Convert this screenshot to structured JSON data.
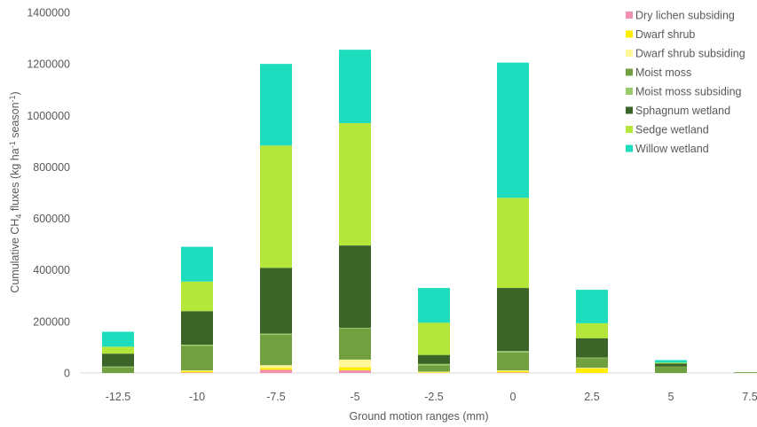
{
  "chart_data": {
    "type": "bar",
    "stacked": true,
    "categories": [
      "-12.5",
      "-10",
      "-7.5",
      "-5",
      "-2.5",
      "0",
      "2.5",
      "5",
      "7.5"
    ],
    "xlabel": "Ground motion ranges (mm)",
    "ylabel": {
      "prefix": "Cumulative CH",
      "sub": "4",
      "middle": " fluxes  (kg ha",
      "sup1": "-1",
      "middle2": " season",
      "sup2": "-1",
      "suffix": ")"
    },
    "ylim": [
      0,
      1400000
    ],
    "yticks": [
      0,
      200000,
      400000,
      600000,
      800000,
      1000000,
      1200000,
      1400000
    ],
    "ytick_labels": [
      "0",
      "200000",
      "400000",
      "600000",
      "800000",
      "1000000",
      "1200000",
      "1400000"
    ],
    "grid": false,
    "legend_position": "top-right",
    "series": [
      {
        "name": "Dry lichen subsiding",
        "color": "#f48fb1",
        "values": [
          0,
          2000,
          12000,
          10000,
          0,
          2000,
          0,
          0,
          0
        ]
      },
      {
        "name": "Dwarf shrub",
        "color": "#ffee00",
        "values": [
          0,
          5000,
          8000,
          12000,
          2000,
          5000,
          18000,
          0,
          0
        ]
      },
      {
        "name": "Dwarf shrub subsiding",
        "color": "#fff79a",
        "values": [
          0,
          3000,
          10000,
          30000,
          3000,
          3000,
          2000,
          0,
          0
        ]
      },
      {
        "name": "Moist moss",
        "color": "#70a040",
        "values": [
          22000,
          95000,
          118000,
          120000,
          25000,
          70000,
          38000,
          25000,
          3000
        ]
      },
      {
        "name": "Moist moss subsiding",
        "color": "#9bcc6a",
        "values": [
          3000,
          5000,
          5000,
          3000,
          5000,
          5000,
          2000,
          0,
          0
        ]
      },
      {
        "name": "Sphagnum wetland",
        "color": "#3a6428",
        "values": [
          50000,
          130000,
          255000,
          320000,
          35000,
          245000,
          75000,
          12000,
          0
        ]
      },
      {
        "name": "Sedge wetland",
        "color": "#b5e63a",
        "values": [
          27000,
          115000,
          475000,
          475000,
          125000,
          350000,
          58000,
          3000,
          0
        ]
      },
      {
        "name": "Willow wetland",
        "color": "#1edcbe",
        "values": [
          58000,
          135000,
          317000,
          285000,
          135000,
          525000,
          130000,
          10000,
          0
        ]
      }
    ]
  }
}
